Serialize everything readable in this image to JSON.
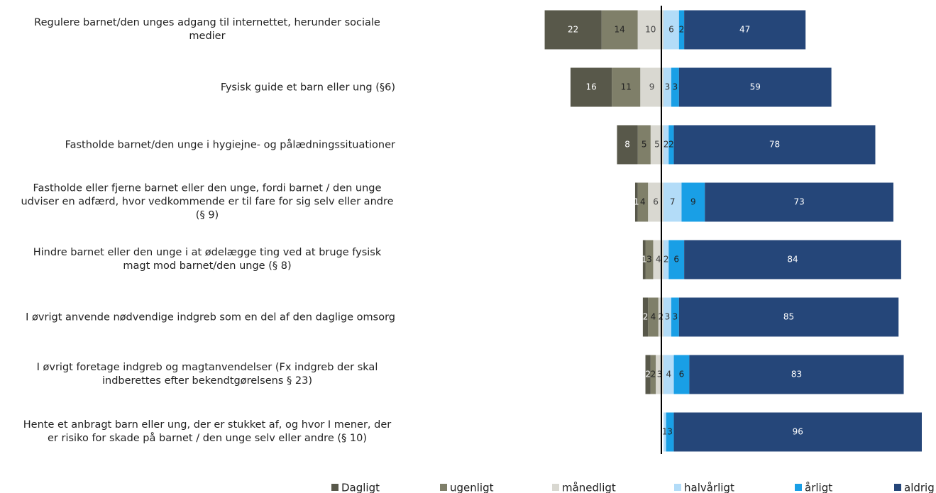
{
  "chart_data": {
    "type": "diverging_stacked_bar",
    "categories": [
      "Regulere barnet/den unges adgang til internettet, herunder sociale medier",
      "Fysisk guide et barn eller ung (§6)",
      "Fastholde barnet/den unge i hygiejne- og pålædningssituationer",
      "Fastholde eller fjerne barnet eller den unge, fordi barnet / den unge udviser en adfærd, hvor vedkommende er til fare for sig selv eller andre (§ 9)",
      "Hindre barnet eller den unge i at ødelægge ting ved at bruge fysisk magt mod barnet/den unge (§ 8)",
      "I øvrigt anvende nødvendige indgreb som en del af den daglige omsorg",
      "I øvrigt foretage indgreb og magtanvendelser (Fx indgreb der skal indberettes efter bekendtgørelsens § 23)",
      "Hente et anbragt barn eller ung, der er stukket af, og hvor I mener, der er risiko for skade på barnet / den unge selv eller andre (§ 10)"
    ],
    "series": [
      {
        "name": "Dagligt",
        "color": "#58584a",
        "side": "left",
        "values": [
          22,
          16,
          8,
          1,
          1,
          2,
          2,
          0
        ]
      },
      {
        "name": "ugenligt",
        "color": "#7f7f69",
        "side": "left",
        "values": [
          14,
          11,
          5,
          4,
          3,
          4,
          2,
          0
        ]
      },
      {
        "name": "månedligt",
        "color": "#d9d8d1",
        "side": "left",
        "values": [
          10,
          9,
          5,
          6,
          4,
          2,
          3,
          0
        ]
      },
      {
        "name": "halvårligt",
        "color": "#b3dcf8",
        "side": "right",
        "values": [
          6,
          3,
          2,
          7,
          2,
          3,
          4,
          1
        ]
      },
      {
        "name": "årligt",
        "color": "#199fe6",
        "side": "right",
        "values": [
          2,
          3,
          2,
          9,
          6,
          3,
          6,
          3
        ]
      },
      {
        "name": "aldrig",
        "color": "#254679",
        "side": "right",
        "values": [
          47,
          59,
          78,
          73,
          84,
          85,
          83,
          96
        ]
      }
    ],
    "legend": "bottom"
  }
}
